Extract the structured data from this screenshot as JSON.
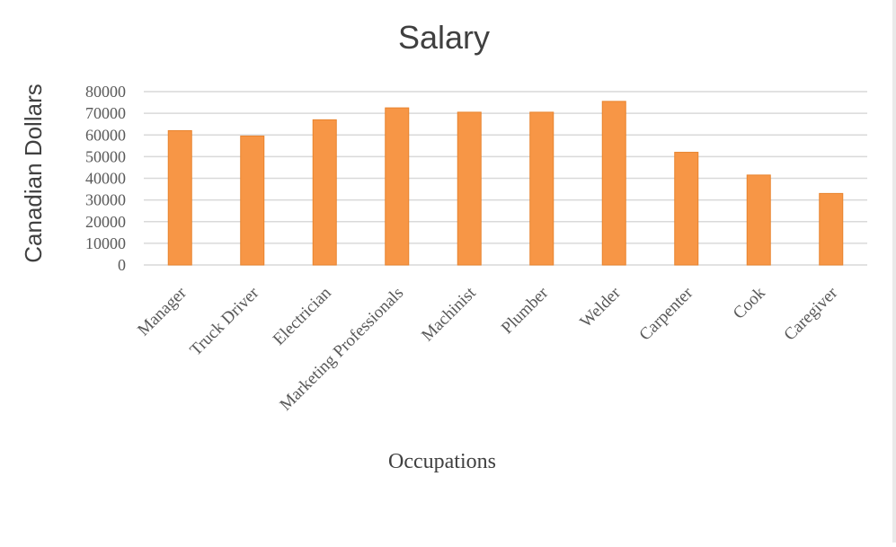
{
  "chart_data": {
    "type": "bar",
    "title": "Salary",
    "xlabel": "Occupations",
    "ylabel": "Canadian Dollars",
    "categories": [
      "Manager",
      "Truck Driver",
      "Electrician",
      "Marketing Professionals",
      "Machinist",
      "Plumber",
      "Welder",
      "Carpenter",
      "Cook",
      "Caregiver"
    ],
    "series": [
      {
        "values": [
          62000,
          59500,
          67000,
          72500,
          70500,
          70500,
          75500,
          52000,
          41500,
          33000
        ]
      }
    ],
    "ylim": [
      0,
      80000
    ],
    "yticks": [
      0,
      10000,
      20000,
      30000,
      40000,
      50000,
      60000,
      70000,
      80000
    ],
    "grid": true,
    "legend": "none",
    "colors": {
      "bar": "#f79646",
      "bar_edge": "#e8842f",
      "grid": "#d9d9d9"
    }
  }
}
